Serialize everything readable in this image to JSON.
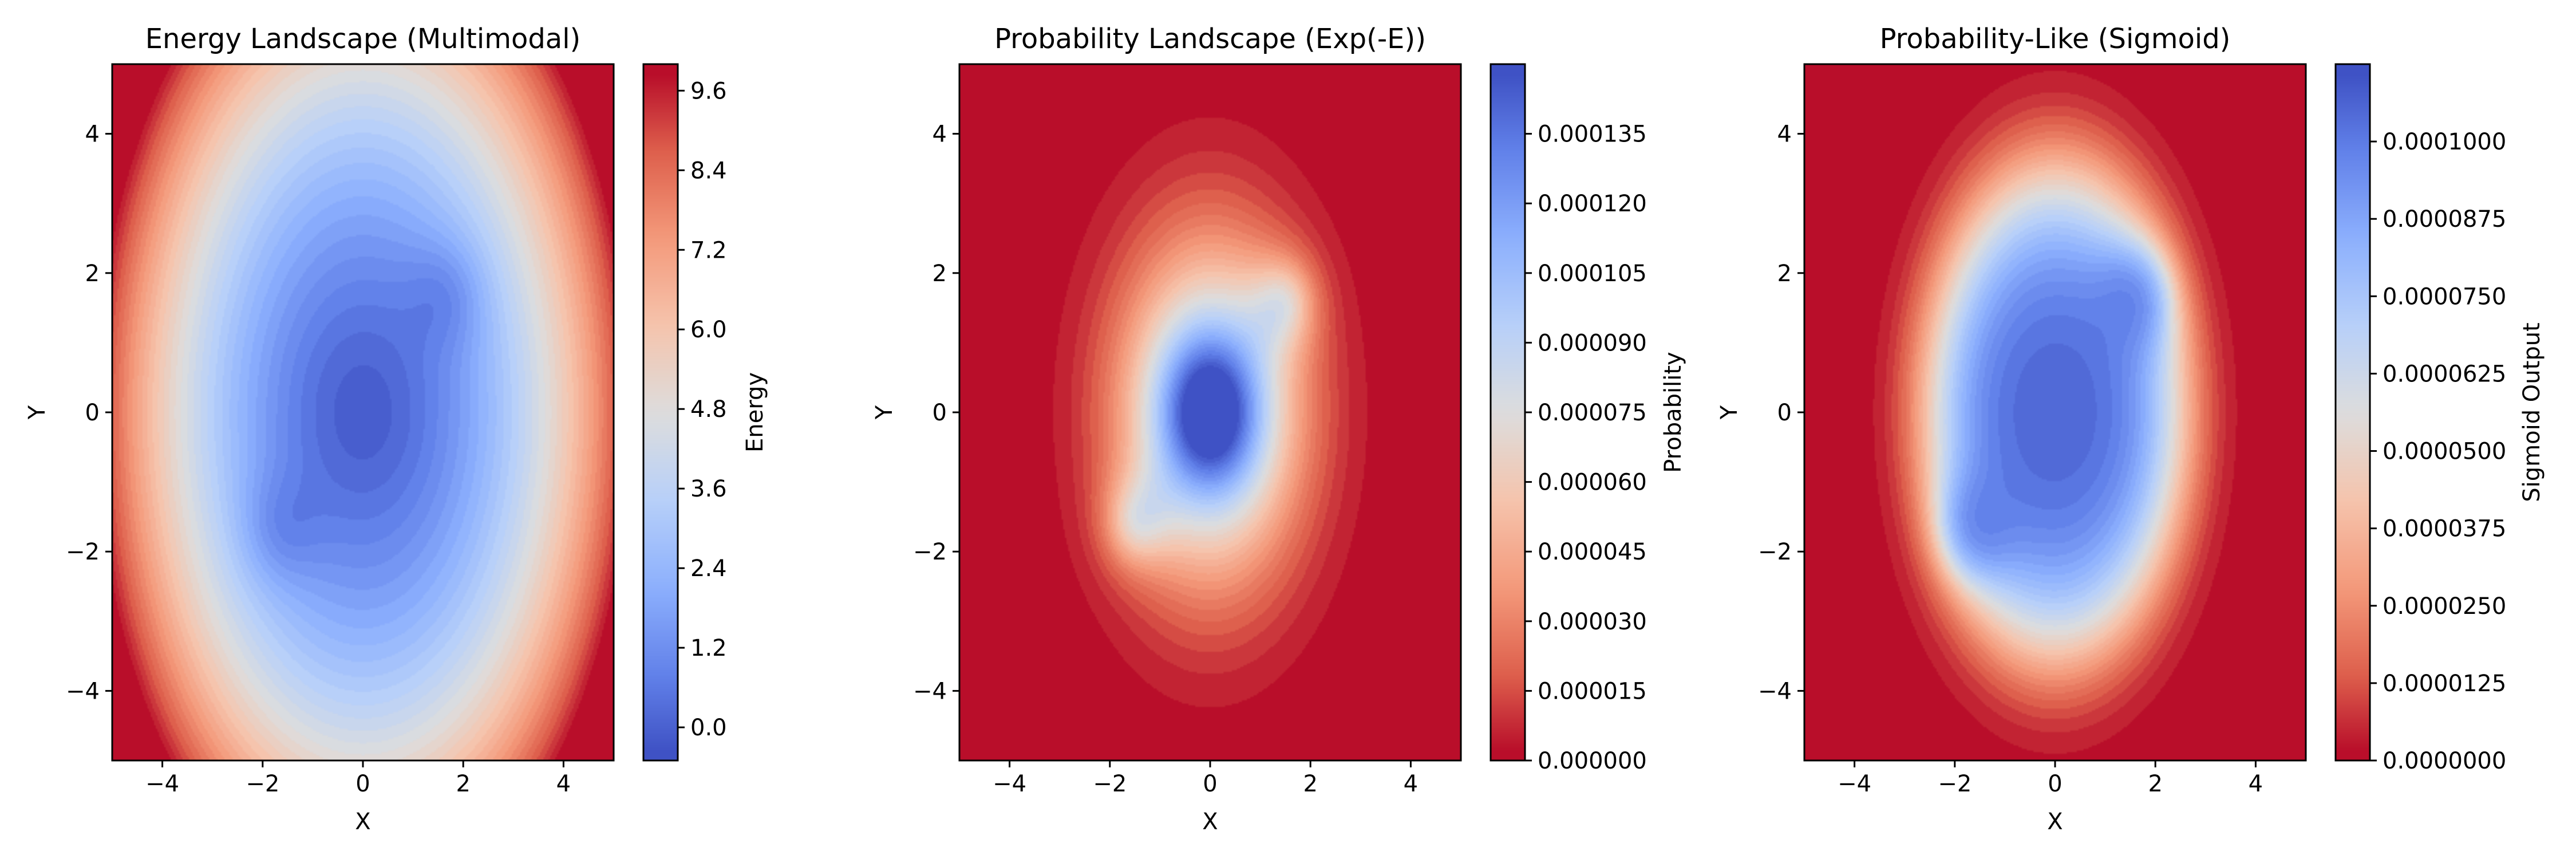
{
  "colors": {
    "low": "#3b4cc0",
    "mid": "#dddddd",
    "high": "#b40426",
    "axis": "#000000",
    "background": "#ffffff"
  },
  "chart_data": [
    {
      "type": "heatmap",
      "title": "Energy Landscape (Multimodal)",
      "xlabel": "X",
      "ylabel": "Y",
      "colorbar_label": "Energy",
      "colormap": "coolwarm",
      "field": "energy",
      "xlim": [
        -5,
        5
      ],
      "ylim": [
        -5,
        5
      ],
      "clim": [
        -0.5,
        10.0
      ],
      "x_ticks": [
        "−4",
        "−2",
        "0",
        "2",
        "4"
      ],
      "y_ticks": [
        "−4",
        "−2",
        "0",
        "2",
        "4"
      ],
      "colorbar_ticks": [
        "0.0",
        "1.2",
        "2.4",
        "3.6",
        "4.8",
        "6.0",
        "7.2",
        "8.4",
        "9.6"
      ],
      "surface": [
        {
          "x": 0,
          "y": 0,
          "value": 0.2
        },
        {
          "x": 1.7,
          "y": 1.7,
          "value": 1.5
        },
        {
          "x": -1.7,
          "y": -1.7,
          "value": 1.5
        },
        {
          "x": 3,
          "y": 0,
          "value": 3.0
        },
        {
          "x": 0,
          "y": 4,
          "value": 4.0
        },
        {
          "x": 5,
          "y": 5,
          "value": 9.8
        }
      ]
    },
    {
      "type": "heatmap",
      "title": "Probability Landscape (Exp(-E))",
      "xlabel": "X",
      "ylabel": "Y",
      "colorbar_label": "Probability",
      "colormap": "coolwarm_r",
      "field": "exp",
      "xlim": [
        -5,
        5
      ],
      "ylim": [
        -5,
        5
      ],
      "clim": [
        0.0,
        0.00015
      ],
      "x_ticks": [
        "−4",
        "−2",
        "0",
        "2",
        "4"
      ],
      "y_ticks": [
        "−4",
        "−2",
        "0",
        "2",
        "4"
      ],
      "colorbar_ticks": [
        "0.000000",
        "0.000015",
        "0.000030",
        "0.000045",
        "0.000060",
        "0.000075",
        "0.000090",
        "0.000105",
        "0.000120",
        "0.000135"
      ],
      "surface": [
        {
          "x": 0,
          "y": 0,
          "value": 0.000145
        },
        {
          "x": 1.7,
          "y": 1.7,
          "value": 0.00011
        },
        {
          "x": -1.7,
          "y": -1.7,
          "value": 0.00011
        },
        {
          "x": 0,
          "y": 3,
          "value": 3e-05
        },
        {
          "x": 0,
          "y": 4.5,
          "value": 0.0
        }
      ]
    },
    {
      "type": "heatmap",
      "title": "Probability-Like (Sigmoid)",
      "xlabel": "X",
      "ylabel": "Y",
      "colorbar_label": "Sigmoid Output",
      "colormap": "coolwarm_r",
      "field": "sigmoid",
      "xlim": [
        -5,
        5
      ],
      "ylim": [
        -5,
        5
      ],
      "clim": [
        0.0,
        0.0001125
      ],
      "x_ticks": [
        "−4",
        "−2",
        "0",
        "2",
        "4"
      ],
      "y_ticks": [
        "−4",
        "−2",
        "0",
        "2",
        "4"
      ],
      "colorbar_ticks": [
        "0.0000000",
        "0.0000125",
        "0.0000250",
        "0.0000375",
        "0.0000500",
        "0.0000625",
        "0.0000750",
        "0.0000875",
        "0.0001000"
      ],
      "surface": [
        {
          "x": 0,
          "y": 0,
          "value": 0.000108
        },
        {
          "x": 1.7,
          "y": 1.7,
          "value": 9e-05
        },
        {
          "x": -1.7,
          "y": -1.7,
          "value": 9e-05
        },
        {
          "x": 0,
          "y": 3.5,
          "value": 2e-05
        },
        {
          "x": 0,
          "y": 4.8,
          "value": 0.0
        }
      ]
    }
  ]
}
